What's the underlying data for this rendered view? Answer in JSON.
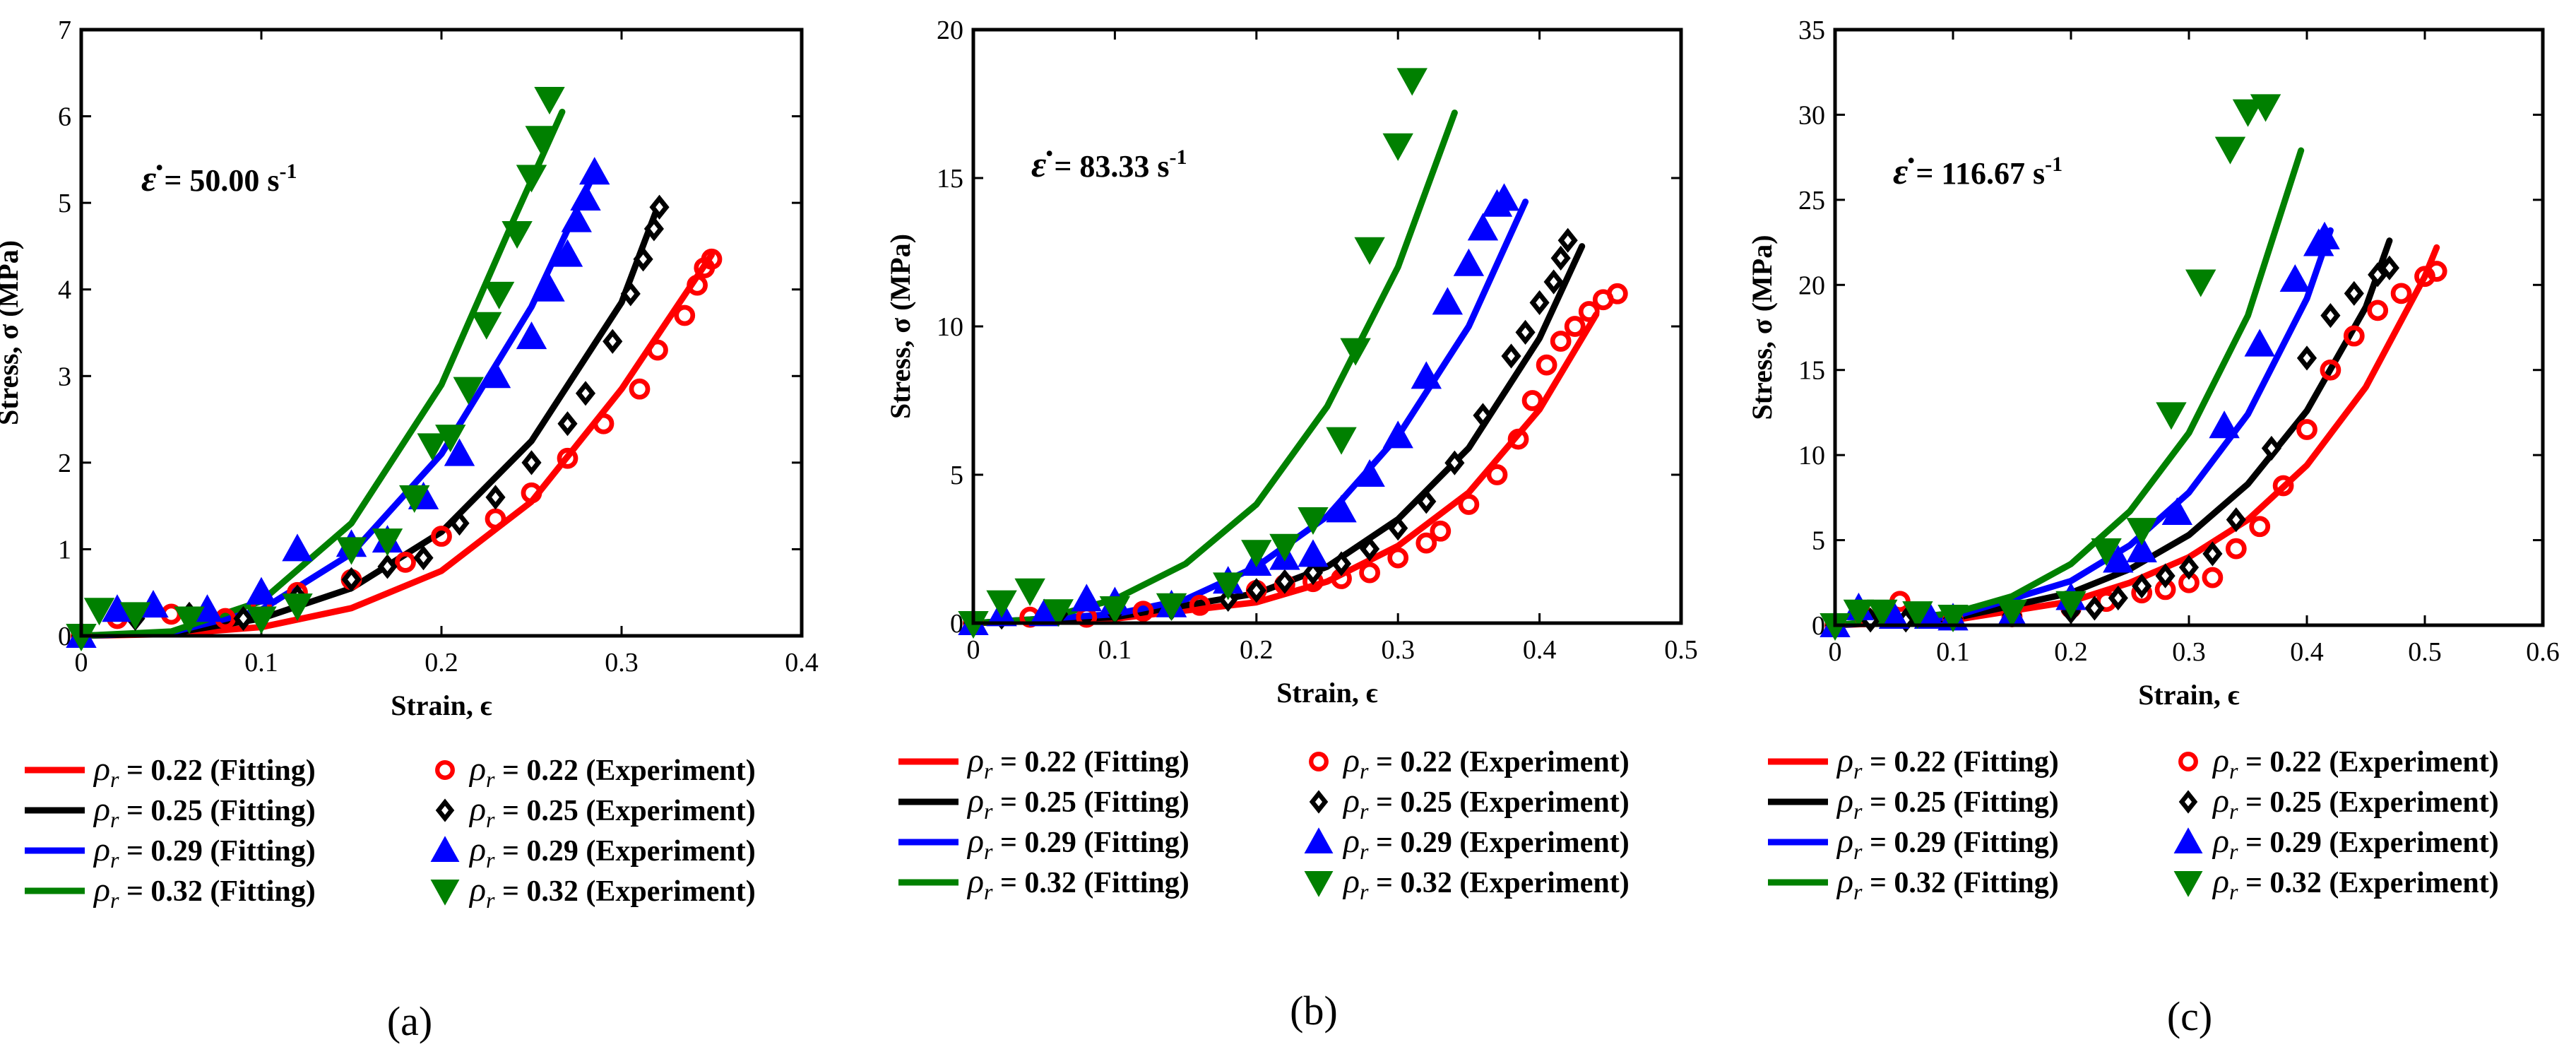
{
  "colors": {
    "r022": "#ff0000",
    "r025": "#000000",
    "r029": "#0000ff",
    "r032": "#008000"
  },
  "legend": {
    "rho_symbol": "ρ",
    "rho_sub": "r",
    "items": [
      {
        "fit": "= 0.22 (Fitting)",
        "exp": "= 0.22 (Experiment)",
        "color": "#ff0000",
        "marker": "circle"
      },
      {
        "fit": "= 0.25 (Fitting)",
        "exp": "= 0.25 (Experiment)",
        "color": "#000000",
        "marker": "diamond"
      },
      {
        "fit": "= 0.29 (Fitting)",
        "exp": "= 0.29 (Experiment)",
        "color": "#0000ff",
        "marker": "triangle-up"
      },
      {
        "fit": "= 0.32 (Fitting)",
        "exp": "= 0.32 (Experiment)",
        "color": "#008000",
        "marker": "triangle-down"
      }
    ]
  },
  "chart_data": [
    {
      "type": "scatter",
      "panel_label": "(a)",
      "rate_symbol": "ε̇",
      "rate_text": "= 50.00 s",
      "rate_exp": "-1",
      "xlabel": "Strain, ϵ",
      "ylabel": "Stress, σ (MPa)",
      "xlim": [
        0,
        0.4
      ],
      "ylim": [
        0,
        7
      ],
      "xticks": [
        0,
        0.1,
        0.2,
        0.3,
        0.4
      ],
      "xtick_labels": [
        "0",
        "0.1",
        "0.2",
        "0.3",
        "0.4"
      ],
      "yticks": [
        0,
        1,
        2,
        3,
        4,
        5,
        6,
        7
      ],
      "ytick_labels": [
        "0",
        "1",
        "2",
        "3",
        "4",
        "5",
        "6",
        "7"
      ],
      "fit_curves": [
        {
          "name": "ρr = 0.22 (Fitting)",
          "color": "#ff0000",
          "x": [
            0.0,
            0.05,
            0.1,
            0.15,
            0.2,
            0.25,
            0.3,
            0.35
          ],
          "y": [
            0.0,
            0.02,
            0.1,
            0.32,
            0.75,
            1.55,
            2.85,
            4.4
          ]
        },
        {
          "name": "ρr = 0.25 (Fitting)",
          "color": "#000000",
          "x": [
            0.0,
            0.05,
            0.1,
            0.15,
            0.2,
            0.25,
            0.3,
            0.32
          ],
          "y": [
            0.0,
            0.03,
            0.2,
            0.55,
            1.2,
            2.25,
            3.85,
            4.95
          ]
        },
        {
          "name": "ρr = 0.29 (Fitting)",
          "color": "#0000ff",
          "x": [
            0.0,
            0.05,
            0.1,
            0.15,
            0.2,
            0.25,
            0.285
          ],
          "y": [
            0.0,
            0.04,
            0.3,
            0.95,
            2.1,
            3.8,
            5.35
          ]
        },
        {
          "name": "ρr = 0.32 (Fitting)",
          "color": "#008000",
          "x": [
            0.0,
            0.05,
            0.1,
            0.15,
            0.2,
            0.24,
            0.267
          ],
          "y": [
            0.0,
            0.05,
            0.4,
            1.3,
            2.9,
            4.8,
            6.05
          ]
        }
      ],
      "experiments": [
        {
          "name": "ρr = 0.22 (Experiment)",
          "color": "#ff0000",
          "marker": "circle",
          "x": [
            0.0,
            0.02,
            0.05,
            0.08,
            0.1,
            0.12,
            0.15,
            0.18,
            0.2,
            0.23,
            0.25,
            0.27,
            0.29,
            0.31,
            0.32,
            0.335,
            0.342,
            0.346,
            0.35
          ],
          "y": [
            0.0,
            0.2,
            0.25,
            0.2,
            0.35,
            0.5,
            0.65,
            0.85,
            1.15,
            1.35,
            1.65,
            2.05,
            2.45,
            2.85,
            3.3,
            3.7,
            4.05,
            4.25,
            4.35
          ]
        },
        {
          "name": "ρr = 0.25 (Experiment)",
          "color": "#000000",
          "marker": "diamond",
          "x": [
            0.0,
            0.03,
            0.06,
            0.09,
            0.12,
            0.15,
            0.17,
            0.19,
            0.21,
            0.23,
            0.25,
            0.27,
            0.28,
            0.295,
            0.305,
            0.312,
            0.318,
            0.321
          ],
          "y": [
            0.0,
            0.2,
            0.25,
            0.2,
            0.45,
            0.65,
            0.8,
            0.9,
            1.3,
            1.6,
            2.0,
            2.45,
            2.8,
            3.4,
            3.95,
            4.35,
            4.7,
            4.95
          ]
        },
        {
          "name": "ρr = 0.29 (Experiment)",
          "color": "#0000ff",
          "marker": "triangle-up",
          "x": [
            0.0,
            0.02,
            0.04,
            0.07,
            0.1,
            0.12,
            0.15,
            0.17,
            0.19,
            0.21,
            0.23,
            0.25,
            0.26,
            0.27,
            0.275,
            0.28,
            0.285
          ],
          "y": [
            0.0,
            0.3,
            0.35,
            0.3,
            0.5,
            1.0,
            1.05,
            1.1,
            1.6,
            2.1,
            3.0,
            3.45,
            4.0,
            4.4,
            4.8,
            5.05,
            5.35
          ]
        },
        {
          "name": "ρr = 0.32 (Experiment)",
          "color": "#008000",
          "marker": "triangle-down",
          "x": [
            0.0,
            0.01,
            0.03,
            0.06,
            0.1,
            0.12,
            0.15,
            0.17,
            0.185,
            0.195,
            0.205,
            0.215,
            0.225,
            0.232,
            0.242,
            0.25,
            0.255,
            0.26
          ],
          "y": [
            0.0,
            0.3,
            0.25,
            0.2,
            0.2,
            0.35,
            1.0,
            1.1,
            1.6,
            2.2,
            2.3,
            2.85,
            3.6,
            3.95,
            4.65,
            5.3,
            5.75,
            6.2
          ]
        }
      ]
    },
    {
      "type": "scatter",
      "panel_label": "(b)",
      "rate_symbol": "ε̇",
      "rate_text": "= 83.33 s",
      "rate_exp": "-1",
      "xlabel": "Strain, ϵ",
      "ylabel": "Stress, σ (MPa)",
      "xlim": [
        0,
        0.5
      ],
      "ylim": [
        0,
        20
      ],
      "xticks": [
        0,
        0.1,
        0.2,
        0.3,
        0.4,
        0.5
      ],
      "xtick_labels": [
        "0",
        "0.1",
        "0.2",
        "0.3",
        "0.4",
        "0.5"
      ],
      "yticks": [
        0,
        5,
        10,
        15,
        20
      ],
      "ytick_labels": [
        "0",
        "5",
        "10",
        "15",
        "20"
      ],
      "fit_curves": [
        {
          "name": "ρr = 0.22 (Fitting)",
          "color": "#ff0000",
          "x": [
            0.0,
            0.1,
            0.2,
            0.25,
            0.3,
            0.35,
            0.4,
            0.44
          ],
          "y": [
            0.0,
            0.15,
            0.7,
            1.4,
            2.6,
            4.4,
            7.2,
            10.4
          ]
        },
        {
          "name": "ρr = 0.25 (Fitting)",
          "color": "#000000",
          "x": [
            0.0,
            0.1,
            0.2,
            0.25,
            0.3,
            0.35,
            0.4,
            0.43
          ],
          "y": [
            0.0,
            0.2,
            1.0,
            1.9,
            3.5,
            5.9,
            9.6,
            12.7
          ]
        },
        {
          "name": "ρr = 0.29 (Fitting)",
          "color": "#0000ff",
          "x": [
            0.0,
            0.1,
            0.15,
            0.2,
            0.25,
            0.3,
            0.35,
            0.39
          ],
          "y": [
            0.0,
            0.3,
            0.8,
            1.9,
            3.6,
            6.3,
            10.0,
            14.2
          ]
        },
        {
          "name": "ρr = 0.32 (Fitting)",
          "color": "#008000",
          "x": [
            0.0,
            0.05,
            0.1,
            0.15,
            0.2,
            0.25,
            0.3,
            0.34
          ],
          "y": [
            0.0,
            0.15,
            0.8,
            2.0,
            4.0,
            7.3,
            12.0,
            17.2
          ]
        }
      ],
      "experiments": [
        {
          "name": "ρr = 0.22 (Experiment)",
          "color": "#ff0000",
          "marker": "circle",
          "x": [
            0.0,
            0.04,
            0.08,
            0.12,
            0.16,
            0.2,
            0.22,
            0.24,
            0.26,
            0.28,
            0.3,
            0.32,
            0.33,
            0.35,
            0.37,
            0.385,
            0.395,
            0.405,
            0.415,
            0.425,
            0.435,
            0.445,
            0.455
          ],
          "y": [
            0.0,
            0.2,
            0.2,
            0.4,
            0.6,
            1.1,
            1.3,
            1.4,
            1.5,
            1.7,
            2.2,
            2.7,
            3.1,
            4.0,
            5.0,
            6.2,
            7.5,
            8.7,
            9.5,
            10.0,
            10.5,
            10.9,
            11.1
          ]
        },
        {
          "name": "ρr = 0.25 (Experiment)",
          "color": "#000000",
          "marker": "diamond",
          "x": [
            0.0,
            0.02,
            0.06,
            0.1,
            0.14,
            0.18,
            0.2,
            0.22,
            0.24,
            0.26,
            0.28,
            0.3,
            0.32,
            0.34,
            0.36,
            0.38,
            0.39,
            0.4,
            0.41,
            0.415,
            0.42
          ],
          "y": [
            0.0,
            0.2,
            0.3,
            0.4,
            0.5,
            0.8,
            1.1,
            1.4,
            1.7,
            2.0,
            2.5,
            3.2,
            4.1,
            5.4,
            7.0,
            9.0,
            9.8,
            10.8,
            11.5,
            12.3,
            12.9
          ]
        },
        {
          "name": "ρr = 0.29 (Experiment)",
          "color": "#0000ff",
          "marker": "triangle-up",
          "x": [
            0.0,
            0.02,
            0.05,
            0.08,
            0.1,
            0.14,
            0.18,
            0.2,
            0.22,
            0.24,
            0.26,
            0.28,
            0.3,
            0.32,
            0.335,
            0.35,
            0.36,
            0.37,
            0.375
          ],
          "y": [
            0.0,
            0.3,
            0.3,
            0.8,
            0.7,
            0.6,
            1.4,
            2.0,
            2.2,
            2.3,
            3.8,
            5.0,
            6.3,
            8.3,
            10.8,
            12.1,
            13.3,
            14.1,
            14.3
          ]
        },
        {
          "name": "ρr = 0.32 (Experiment)",
          "color": "#008000",
          "marker": "triangle-down",
          "x": [
            0.0,
            0.02,
            0.04,
            0.06,
            0.1,
            0.14,
            0.18,
            0.2,
            0.22,
            0.24,
            0.26,
            0.27,
            0.28,
            0.3,
            0.31
          ],
          "y": [
            0.0,
            0.7,
            1.1,
            0.4,
            0.5,
            0.6,
            1.3,
            2.4,
            2.6,
            3.5,
            6.2,
            9.2,
            12.6,
            16.1,
            18.3
          ]
        }
      ]
    },
    {
      "type": "scatter",
      "panel_label": "(c)",
      "rate_symbol": "ε̇",
      "rate_text": "= 116.67 s",
      "rate_exp": "-1",
      "xlabel": "Strain, ϵ",
      "ylabel": "Stress, σ (MPa)",
      "xlim": [
        0,
        0.6
      ],
      "ylim": [
        0,
        35
      ],
      "xticks": [
        0,
        0.1,
        0.2,
        0.3,
        0.4,
        0.5,
        0.6
      ],
      "xtick_labels": [
        "0",
        "0.1",
        "0.2",
        "0.3",
        "0.4",
        "0.5",
        "0.6"
      ],
      "yticks": [
        0,
        5,
        10,
        15,
        20,
        25,
        30,
        35
      ],
      "ytick_labels": [
        "0",
        "5",
        "10",
        "15",
        "20",
        "25",
        "30",
        "35"
      ],
      "fit_curves": [
        {
          "name": "ρr = 0.22 (Fitting)",
          "color": "#ff0000",
          "x": [
            0.0,
            0.1,
            0.2,
            0.25,
            0.3,
            0.35,
            0.4,
            0.45,
            0.5,
            0.51
          ],
          "y": [
            0.0,
            0.3,
            1.4,
            2.5,
            4.0,
            6.2,
            9.4,
            14.0,
            20.5,
            22.2
          ]
        },
        {
          "name": "ρr = 0.25 (Fitting)",
          "color": "#000000",
          "x": [
            0.0,
            0.1,
            0.2,
            0.25,
            0.3,
            0.35,
            0.4,
            0.45,
            0.47
          ],
          "y": [
            0.0,
            0.4,
            1.9,
            3.3,
            5.3,
            8.3,
            12.6,
            18.7,
            22.6
          ]
        },
        {
          "name": "ρr = 0.29 (Fitting)",
          "color": "#0000ff",
          "x": [
            0.0,
            0.1,
            0.2,
            0.25,
            0.3,
            0.35,
            0.4,
            0.42
          ],
          "y": [
            0.0,
            0.5,
            2.6,
            4.7,
            7.8,
            12.4,
            19.2,
            23.2
          ]
        },
        {
          "name": "ρr = 0.32 (Fitting)",
          "color": "#008000",
          "x": [
            0.0,
            0.1,
            0.15,
            0.2,
            0.25,
            0.3,
            0.35,
            0.395
          ],
          "y": [
            0.0,
            0.7,
            1.7,
            3.6,
            6.7,
            11.3,
            18.2,
            27.9
          ]
        }
      ],
      "experiments": [
        {
          "name": "ρr = 0.22 (Experiment)",
          "color": "#ff0000",
          "marker": "circle",
          "x": [
            0.0,
            0.025,
            0.055,
            0.1,
            0.15,
            0.2,
            0.23,
            0.26,
            0.28,
            0.3,
            0.32,
            0.34,
            0.36,
            0.38,
            0.4,
            0.42,
            0.44,
            0.46,
            0.48,
            0.5,
            0.51
          ],
          "y": [
            0.0,
            0.5,
            1.4,
            0.3,
            0.5,
            1.0,
            1.4,
            1.9,
            2.1,
            2.5,
            2.8,
            4.5,
            5.8,
            8.2,
            11.5,
            15.0,
            17.0,
            18.5,
            19.5,
            20.5,
            20.8
          ]
        },
        {
          "name": "ρr = 0.25 (Experiment)",
          "color": "#000000",
          "marker": "diamond",
          "x": [
            0.0,
            0.03,
            0.06,
            0.1,
            0.15,
            0.2,
            0.22,
            0.24,
            0.26,
            0.28,
            0.3,
            0.32,
            0.34,
            0.37,
            0.4,
            0.42,
            0.44,
            0.46,
            0.47
          ],
          "y": [
            0.0,
            0.3,
            0.3,
            0.4,
            0.6,
            0.8,
            1.0,
            1.6,
            2.3,
            2.9,
            3.4,
            4.2,
            6.2,
            10.4,
            15.7,
            18.2,
            19.5,
            20.6,
            21.0
          ]
        },
        {
          "name": "ρr = 0.29 (Experiment)",
          "color": "#0000ff",
          "marker": "triangle-up",
          "x": [
            0.0,
            0.02,
            0.05,
            0.08,
            0.1,
            0.15,
            0.2,
            0.24,
            0.26,
            0.29,
            0.33,
            0.36,
            0.39,
            0.41,
            0.415
          ],
          "y": [
            0.0,
            1.0,
            0.5,
            0.5,
            0.4,
            0.6,
            1.6,
            3.8,
            4.4,
            6.6,
            11.7,
            16.5,
            20.3,
            22.4,
            22.8
          ]
        },
        {
          "name": "ρr = 0.32 (Experiment)",
          "color": "#008000",
          "marker": "triangle-down",
          "x": [
            0.0,
            0.02,
            0.04,
            0.07,
            0.1,
            0.15,
            0.2,
            0.23,
            0.26,
            0.285,
            0.31,
            0.335,
            0.35,
            0.365
          ],
          "y": [
            0.0,
            0.8,
            0.8,
            0.7,
            0.5,
            0.8,
            1.3,
            4.4,
            5.6,
            12.4,
            20.2,
            28.0,
            30.2,
            30.5
          ]
        }
      ]
    }
  ]
}
